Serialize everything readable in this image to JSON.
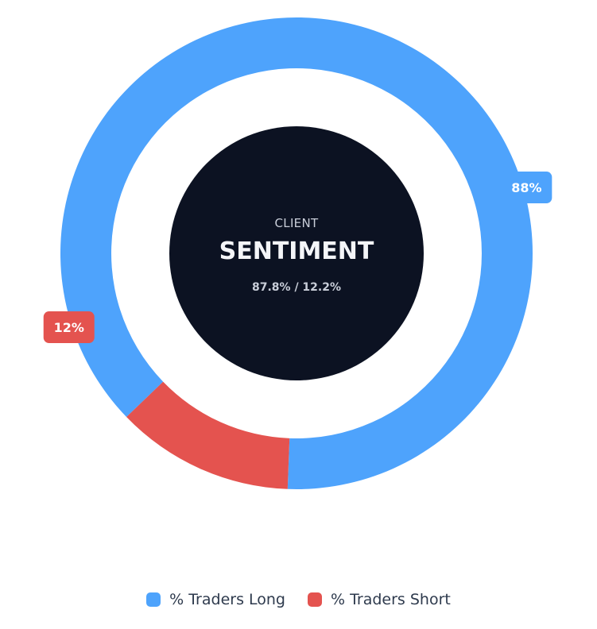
{
  "chart_data": {
    "type": "pie",
    "subtype": "doughnut",
    "categories": [
      "% Traders Long",
      "% Traders Short"
    ],
    "values": [
      87.8,
      12.2
    ],
    "data_labels": [
      "88%",
      "12%"
    ],
    "colors": [
      "#4ea3fc",
      "#e4534f"
    ],
    "legend_position": "bottom",
    "center": {
      "caption": "CLIENT",
      "title": "SENTIMENT",
      "ratio": "87.8% / 12.2%",
      "background": "#0c1222"
    }
  }
}
